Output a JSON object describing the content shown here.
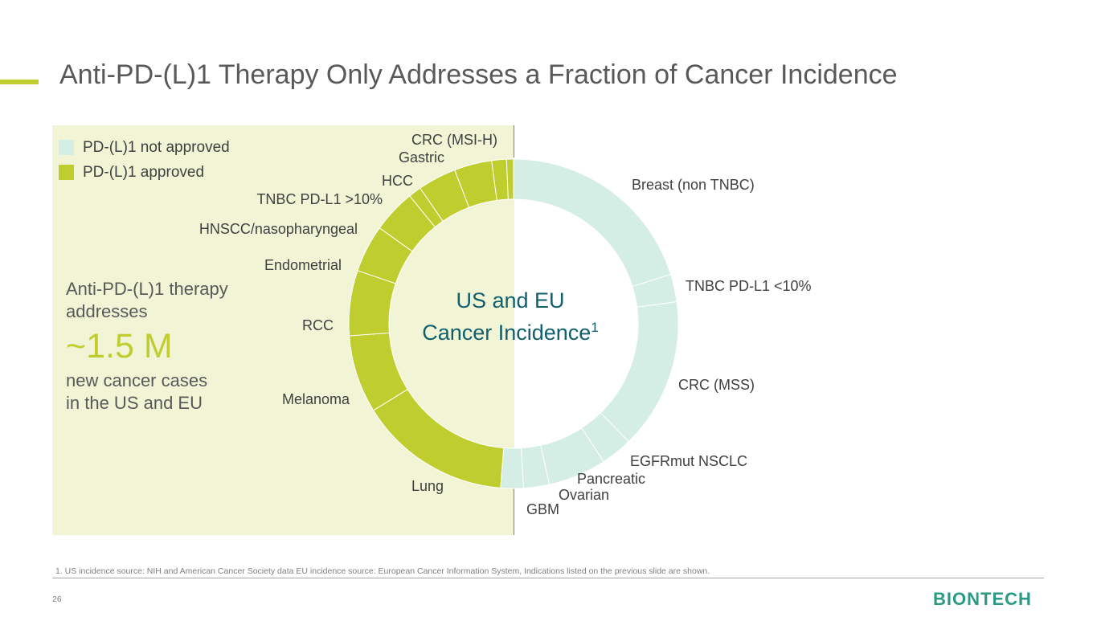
{
  "slide": {
    "title": "Anti-PD-(L)1 Therapy Only Addresses a Fraction of Cancer Incidence",
    "accent_color": "#c0cd2f",
    "panel_color": "#f1f5d6",
    "footnote": "1. US incidence source: NIH and American Cancer Society data EU incidence source: European Cancer Information System, Indications listed on the previous slide are shown.",
    "page_number": "26",
    "logo_text": "BIONTECH",
    "logo_color": "#2a9a84"
  },
  "legend": {
    "items": [
      {
        "label": "PD-(L)1 not approved",
        "color": "#d4ede5"
      },
      {
        "label": "PD-(L)1 approved",
        "color": "#c0cd2f"
      }
    ]
  },
  "callout": {
    "line1": "Anti-PD-(L)1 therapy",
    "line2": "addresses",
    "value": "~1.5 M",
    "line3": "new cancer cases",
    "line4": "in the US and EU",
    "value_color": "#c0cd2f"
  },
  "center_label": {
    "line1": "US and EU",
    "line2": "Cancer Incidence",
    "superscript": "1",
    "color": "#0f5f6e"
  },
  "chart_data": {
    "type": "pie",
    "style": "donut",
    "start_angle_deg": 0,
    "direction": "clockwise",
    "colors": {
      "not_approved": "#d4ede5",
      "approved": "#c0cd2f"
    },
    "slices": [
      {
        "label": "Breast (non TNBC)",
        "value": 20.8,
        "group": "not_approved"
      },
      {
        "label": "TNBC PD-L1 <10%",
        "value": 2.8,
        "group": "not_approved"
      },
      {
        "label": "CRC (MSS)",
        "value": 15.3,
        "group": "not_approved"
      },
      {
        "label": "EGFRmut NSCLC",
        "value": 3.2,
        "group": "not_approved"
      },
      {
        "label": "Pancreatic",
        "value": 5.9,
        "group": "not_approved"
      },
      {
        "label": "Ovarian",
        "value": 2.6,
        "group": "not_approved"
      },
      {
        "label": "GBM",
        "value": 2.3,
        "group": "not_approved"
      },
      {
        "label": "Lung",
        "value": 15.4,
        "group": "approved"
      },
      {
        "label": "Melanoma",
        "value": 7.9,
        "group": "approved"
      },
      {
        "label": "RCC",
        "value": 6.6,
        "group": "approved"
      },
      {
        "label": "Endometrial",
        "value": 4.8,
        "group": "approved"
      },
      {
        "label": "HNSCC/nasopharyngeal",
        "value": 4.4,
        "group": "approved"
      },
      {
        "label": "TNBC  PD-L1 >10%",
        "value": 1.3,
        "group": "approved"
      },
      {
        "label": "HCC",
        "value": 3.9,
        "group": "approved"
      },
      {
        "label": "Gastric",
        "value": 3.8,
        "group": "approved"
      },
      {
        "label": "CRC (MSI-H)",
        "value": 1.5,
        "group": "approved"
      },
      {
        "label": "",
        "value": 0.7,
        "group": "approved"
      }
    ]
  }
}
